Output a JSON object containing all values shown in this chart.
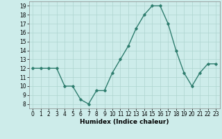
{
  "x": [
    0,
    1,
    2,
    3,
    4,
    5,
    6,
    7,
    8,
    9,
    10,
    11,
    12,
    13,
    14,
    15,
    16,
    17,
    18,
    19,
    20,
    21,
    22,
    23
  ],
  "y": [
    12,
    12,
    12,
    12,
    10,
    10,
    8.5,
    8,
    9.5,
    9.5,
    11.5,
    13,
    14.5,
    16.5,
    18,
    19,
    19,
    17,
    14,
    11.5,
    10,
    11.5,
    12.5,
    12.5
  ],
  "xlabel": "Humidex (Indice chaleur)",
  "xlim": [
    -0.5,
    23.5
  ],
  "ylim": [
    7.5,
    19.5
  ],
  "yticks": [
    8,
    9,
    10,
    11,
    12,
    13,
    14,
    15,
    16,
    17,
    18,
    19
  ],
  "xticks": [
    0,
    1,
    2,
    3,
    4,
    5,
    6,
    7,
    8,
    9,
    10,
    11,
    12,
    13,
    14,
    15,
    16,
    17,
    18,
    19,
    20,
    21,
    22,
    23
  ],
  "line_color": "#2e7d6e",
  "marker": "D",
  "marker_size": 1.8,
  "line_width": 1.0,
  "bg_color": "#cdecea",
  "grid_color": "#aed4cf",
  "label_fontsize": 6.5,
  "tick_fontsize": 5.5
}
